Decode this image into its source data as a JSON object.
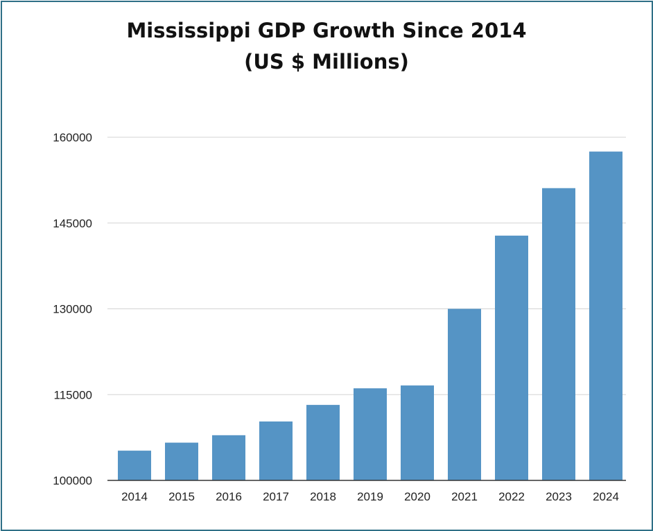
{
  "chart_data": {
    "type": "bar",
    "title_lines": [
      "Mississippi GDP Growth Since 2014",
      "(US $ Millions)"
    ],
    "xlabel": "",
    "ylabel": "",
    "categories": [
      "2014",
      "2015",
      "2016",
      "2017",
      "2018",
      "2019",
      "2020",
      "2021",
      "2022",
      "2023",
      "2024"
    ],
    "series": [
      {
        "values": [
          105200,
          106600,
          107900,
          110300,
          113200,
          116100,
          116600,
          130000,
          142800,
          151100,
          157500
        ]
      }
    ],
    "ylim": [
      100000,
      160000
    ],
    "yticks": [
      "100000",
      "115000",
      "130000",
      "145000",
      "160000"
    ],
    "grid": true,
    "legend": "none",
    "colors": {
      "bar": "#5594c5",
      "grid": "#d3d3d3",
      "axis": "#333333",
      "frame": "#2f6f86"
    }
  }
}
